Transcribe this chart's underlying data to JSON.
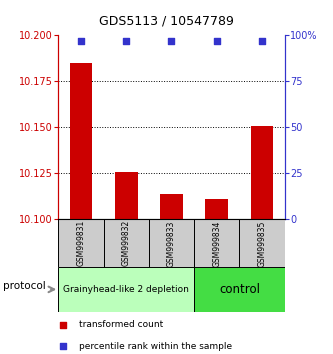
{
  "title": "GDS5113 / 10547789",
  "samples": [
    "GSM999831",
    "GSM999832",
    "GSM999833",
    "GSM999834",
    "GSM999835"
  ],
  "bar_values": [
    10.185,
    10.126,
    10.114,
    10.111,
    10.151
  ],
  "bar_baseline": 10.1,
  "left_ylim": [
    10.1,
    10.2
  ],
  "left_yticks": [
    10.1,
    10.125,
    10.15,
    10.175,
    10.2
  ],
  "right_ylim": [
    0,
    100
  ],
  "right_yticks": [
    0,
    25,
    50,
    75,
    100
  ],
  "right_yticklabels": [
    "0",
    "25",
    "50",
    "75",
    "100%"
  ],
  "dotted_lines": [
    10.125,
    10.15,
    10.175
  ],
  "bar_color": "#cc0000",
  "dot_color": "#3333cc",
  "protocol_groups": [
    {
      "label": "Grainyhead-like 2 depletion",
      "color": "#bbffbb",
      "span": [
        0,
        3
      ]
    },
    {
      "label": "control",
      "color": "#44dd44",
      "span": [
        3,
        5
      ]
    }
  ],
  "legend_items": [
    {
      "color": "#cc0000",
      "label": "transformed count"
    },
    {
      "color": "#3333cc",
      "label": "percentile rank within the sample"
    }
  ],
  "protocol_label": "protocol",
  "left_axis_color": "#cc0000",
  "right_axis_color": "#3333cc",
  "title_fontsize": 9,
  "tick_fontsize": 7,
  "sample_fontsize": 5.5,
  "group_fontsize1": 6.5,
  "group_fontsize2": 8.5,
  "legend_fontsize": 6.5
}
